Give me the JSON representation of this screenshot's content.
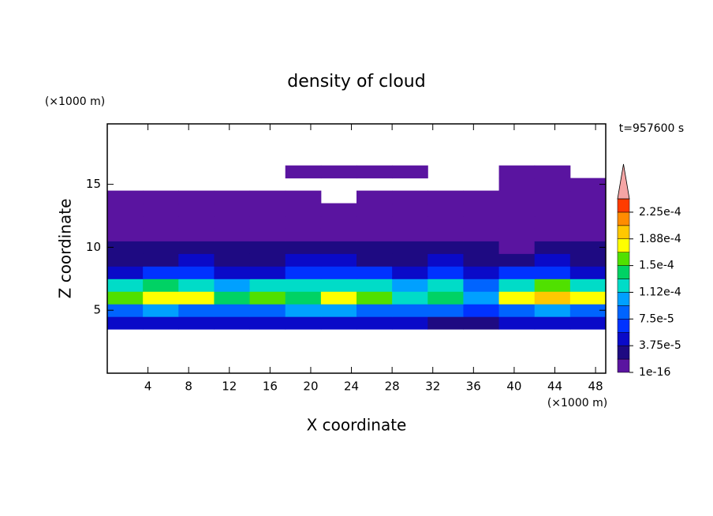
{
  "chart_data": {
    "type": "contour",
    "title": "density of cloud",
    "time_label": "t=957600 s",
    "xlabel": "X coordinate",
    "ylabel": "Z coordinate",
    "x_unit": "(×1000 m)",
    "y_unit": "(×1000 m)",
    "xlim": [
      0,
      49
    ],
    "ylim": [
      0,
      19.8
    ],
    "xticks": [
      4,
      8,
      12,
      16,
      20,
      24,
      28,
      32,
      36,
      40,
      44,
      48
    ],
    "yticks": [
      5,
      10,
      15
    ],
    "x": [
      1.75,
      5.25,
      8.75,
      12.25,
      15.75,
      19.25,
      22.75,
      26.25,
      29.75,
      33.25,
      36.75,
      40.25,
      43.75,
      47.25
    ],
    "y": [
      4,
      5,
      6,
      7,
      8,
      9,
      10,
      11,
      12,
      13,
      14,
      15,
      16
    ],
    "z": [
      [
        4e-05,
        5e-05,
        4e-05,
        4e-05,
        5e-05,
        4e-05,
        4e-05,
        5e-05,
        4e-05,
        3e-05,
        3e-05,
        4e-05,
        5e-05,
        4e-05
      ],
      [
        9e-05,
        0.0001,
        9e-05,
        9e-05,
        9e-05,
        0.0001,
        0.0001,
        9e-05,
        9e-05,
        8e-05,
        7e-05,
        9e-05,
        0.0001,
        9e-05
      ],
      [
        0.00015,
        0.00018,
        0.00017,
        0.00014,
        0.00015,
        0.00014,
        0.00017,
        0.00016,
        0.00013,
        0.00014,
        0.00011,
        0.00017,
        0.00019,
        0.00017
      ],
      [
        0.00012,
        0.00014,
        0.00013,
        0.00011,
        0.00012,
        0.00012,
        0.00013,
        0.00012,
        0.00011,
        0.00012,
        9e-05,
        0.00013,
        0.00015,
        0.00013
      ],
      [
        5e-05,
        6e-05,
        6e-05,
        5e-05,
        5e-05,
        6e-05,
        7e-05,
        6e-05,
        5e-05,
        6e-05,
        5e-05,
        6e-05,
        6e-05,
        5e-05
      ],
      [
        3e-05,
        3e-05,
        4e-05,
        3e-05,
        3e-05,
        4e-05,
        4e-05,
        3e-05,
        3e-05,
        4e-05,
        3e-05,
        3e-05,
        4e-05,
        3e-05
      ],
      [
        2e-05,
        2e-05,
        2.5e-05,
        2e-05,
        2e-05,
        2.5e-05,
        2e-05,
        2e-05,
        2.5e-05,
        2e-05,
        2e-05,
        1.5e-05,
        2e-05,
        2e-05
      ],
      [
        1e-05,
        1.2e-05,
        1.5e-05,
        1.2e-05,
        1e-05,
        1.2e-05,
        1e-05,
        1.2e-05,
        1e-05,
        1e-05,
        1.2e-05,
        8e-06,
        1e-05,
        1e-05
      ],
      [
        8e-06,
        1e-05,
        1e-05,
        8e-06,
        8e-06,
        1e-05,
        8e-06,
        8e-06,
        1e-05,
        8e-06,
        8e-06,
        6e-06,
        8e-06,
        8e-06
      ],
      [
        6e-06,
        8e-06,
        8e-06,
        6e-06,
        6e-06,
        8e-06,
        6e-06,
        6e-06,
        8e-06,
        6e-06,
        6e-06,
        5e-06,
        6e-06,
        6e-06
      ],
      [
        5e-06,
        5e-06,
        5e-06,
        5e-06,
        5e-06,
        3e-06,
        null,
        3e-06,
        5e-06,
        3e-06,
        5e-06,
        4e-06,
        5e-06,
        5e-06
      ],
      [
        null,
        null,
        null,
        null,
        null,
        null,
        null,
        null,
        null,
        null,
        null,
        3e-06,
        4e-06,
        3e-06
      ],
      [
        null,
        null,
        null,
        null,
        null,
        2e-06,
        2e-06,
        2e-06,
        2e-06,
        null,
        null,
        2e-06,
        2e-06,
        null
      ]
    ],
    "levels": [
      1e-16,
      1.875e-05,
      3.75e-05,
      5.625e-05,
      7.5e-05,
      9.375e-05,
      0.0001125,
      0.00013125,
      0.00015,
      0.00016875,
      0.0001875,
      0.00020625,
      0.000225,
      0.00024375
    ],
    "colors": [
      "#5a14a0",
      "#1e0a82",
      "#0a0ac8",
      "#0032ff",
      "#0064ff",
      "#00a0ff",
      "#00dcc8",
      "#00d264",
      "#50e000",
      "#ffff00",
      "#ffc800",
      "#ff8c00",
      "#ff3c00"
    ],
    "extend_color": "#f5a5a5",
    "colorbar_ticks": [
      1e-16,
      {
        "value": 3.75e-05,
        "label": "3.75e-5"
      },
      {
        "value": 7.5e-05,
        "label": "7.5e-5"
      },
      {
        "value": 0.0001125,
        "label": "1.12e-4"
      },
      {
        "value": 0.00015,
        "label": "1.5e-4"
      },
      {
        "value": 0.0001875,
        "label": "1.88e-4"
      },
      {
        "value": 0.000225,
        "label": "2.25e-4"
      }
    ]
  }
}
